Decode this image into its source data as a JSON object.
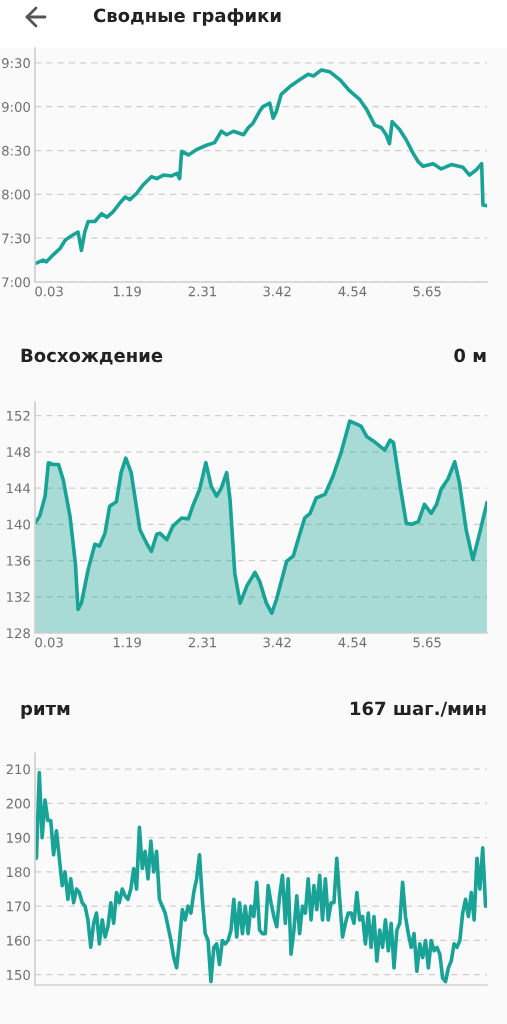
{
  "chart_data": [
    {
      "type": "line",
      "title": "Сводные графики",
      "color": "#18a396",
      "x": [
        -0.18,
        -0.06,
        -0.01,
        0.09,
        0.19,
        0.27,
        0.37,
        0.46,
        0.51,
        0.56,
        0.61,
        0.71,
        0.81,
        0.89,
        0.98,
        1.08,
        1.16,
        1.23,
        1.33,
        1.43,
        1.55,
        1.63,
        1.73,
        1.85,
        1.93,
        1.97,
        2.0,
        2.1,
        2.22,
        2.37,
        2.49,
        2.59,
        2.67,
        2.77,
        2.92,
        2.99,
        3.06,
        3.16,
        3.21,
        3.31,
        3.36,
        3.41,
        3.48,
        3.61,
        3.76,
        3.88,
        3.96,
        4.08,
        4.2,
        4.35,
        4.5,
        4.65,
        4.75,
        4.87,
        4.97,
        5.04,
        5.09,
        5.13,
        5.24,
        5.34,
        5.44,
        5.52,
        5.59,
        5.74,
        5.86,
        6.01,
        6.18,
        6.28,
        6.38,
        6.46,
        6.48,
        6.54
      ],
      "values": [
        7.21,
        7.25,
        7.23,
        7.31,
        7.38,
        7.48,
        7.53,
        7.57,
        7.36,
        7.57,
        7.69,
        7.69,
        7.78,
        7.74,
        7.8,
        7.9,
        7.97,
        7.94,
        8.01,
        8.11,
        8.2,
        8.18,
        8.22,
        8.21,
        8.24,
        8.18,
        8.49,
        8.45,
        8.51,
        8.56,
        8.59,
        8.72,
        8.68,
        8.72,
        8.68,
        8.76,
        8.81,
        8.95,
        9.0,
        9.04,
        8.87,
        8.95,
        9.14,
        9.23,
        9.31,
        9.37,
        9.35,
        9.42,
        9.4,
        9.31,
        9.18,
        9.08,
        8.97,
        8.79,
        8.76,
        8.68,
        8.58,
        8.83,
        8.74,
        8.62,
        8.47,
        8.37,
        8.32,
        8.35,
        8.29,
        8.34,
        8.31,
        8.22,
        8.28,
        8.35,
        7.88,
        7.87
      ],
      "xlim": [
        -0.18,
        6.54
      ],
      "xticks": [
        0.03,
        1.19,
        2.31,
        3.42,
        4.54,
        5.65
      ],
      "ylim": [
        7,
        9.67
      ],
      "yticks": [
        {
          "value": 7,
          "label": "7:00"
        },
        {
          "value": 7.5,
          "label": "7:30"
        },
        {
          "value": 8,
          "label": "8:00"
        },
        {
          "value": 8.5,
          "label": "8:30"
        },
        {
          "value": 9,
          "label": "9:00"
        },
        {
          "value": 9.5,
          "label": "9:30"
        }
      ],
      "grid": "y"
    },
    {
      "type": "area",
      "title": "Восхождение",
      "subtitle": "0 м",
      "color": "#18a396",
      "x": [
        -0.18,
        -0.11,
        -0.03,
        0.02,
        0.09,
        0.17,
        0.24,
        0.34,
        0.42,
        0.46,
        0.51,
        0.61,
        0.71,
        0.78,
        0.86,
        0.93,
        1.03,
        1.1,
        1.17,
        1.25,
        1.38,
        1.48,
        1.55,
        1.63,
        1.68,
        1.78,
        1.87,
        2.0,
        2.1,
        2.17,
        2.27,
        2.36,
        2.44,
        2.52,
        2.59,
        2.67,
        2.72,
        2.79,
        2.87,
        2.97,
        3.09,
        3.16,
        3.26,
        3.34,
        3.41,
        3.56,
        3.66,
        3.76,
        3.83,
        3.91,
        4.0,
        4.13,
        4.25,
        4.37,
        4.5,
        4.62,
        4.67,
        4.75,
        4.85,
        4.95,
        5.02,
        5.1,
        5.15,
        5.24,
        5.34,
        5.42,
        5.52,
        5.61,
        5.71,
        5.79,
        5.86,
        5.96,
        6.06,
        6.13,
        6.23,
        6.33,
        6.43,
        6.54
      ],
      "values": [
        140.1,
        140.9,
        143.1,
        146.8,
        146.6,
        146.6,
        144.9,
        140.9,
        135.7,
        130.6,
        131.3,
        135.0,
        137.8,
        137.6,
        139.0,
        142.0,
        142.5,
        145.7,
        147.3,
        145.7,
        139.4,
        137.9,
        137.0,
        138.9,
        139.0,
        138.3,
        139.8,
        140.7,
        140.6,
        142.1,
        143.9,
        146.8,
        144.2,
        143.1,
        144.0,
        145.7,
        142.7,
        134.6,
        131.3,
        133.2,
        134.7,
        133.7,
        131.3,
        130.2,
        131.7,
        135.9,
        136.5,
        139.0,
        140.7,
        141.2,
        142.9,
        143.3,
        145.3,
        147.9,
        151.4,
        151.0,
        150.8,
        149.7,
        149.2,
        148.6,
        148.2,
        149.3,
        149.0,
        144.6,
        140.1,
        140.0,
        140.3,
        142.2,
        141.2,
        142.2,
        143.9,
        145.0,
        146.9,
        144.6,
        139.4,
        136.1,
        139.0,
        142.4
      ],
      "xlim": [
        -0.18,
        6.54
      ],
      "xticks": [
        0.03,
        1.19,
        2.31,
        3.42,
        4.54,
        5.65
      ],
      "ylim": [
        128,
        153.5
      ],
      "yticks": [
        128,
        132,
        136,
        140,
        144,
        148,
        152
      ],
      "grid": "y"
    },
    {
      "type": "line",
      "title": "ритм",
      "subtitle": "167 шаг./мин",
      "color": "#18a396",
      "values": [
        184,
        209,
        190,
        201,
        195,
        195,
        185,
        192,
        184,
        176,
        180,
        172,
        178,
        171,
        175,
        174,
        171,
        170,
        166,
        158,
        165,
        168,
        159,
        166,
        161,
        164,
        171,
        165,
        174,
        171,
        175,
        173,
        172,
        175,
        181,
        175,
        193,
        181,
        186,
        178,
        189,
        180,
        186,
        172,
        170,
        168,
        164,
        160,
        155,
        152,
        160,
        169,
        166,
        170,
        168,
        174,
        178,
        185,
        172,
        162,
        160,
        148,
        158,
        159,
        153,
        160,
        159,
        160,
        163,
        172,
        161,
        171,
        162,
        170,
        162,
        170,
        167,
        177,
        163,
        162,
        162,
        176,
        171,
        167,
        164,
        173,
        179,
        165,
        178,
        156,
        163,
        173,
        162,
        170,
        168,
        178,
        166,
        176,
        169,
        179,
        166,
        178,
        166,
        171,
        171,
        184,
        172,
        161,
        165,
        168,
        168,
        165,
        174,
        166,
        167,
        159,
        168,
        158,
        167,
        154,
        163,
        158,
        166,
        157,
        165,
        152,
        163,
        165,
        177,
        167,
        162,
        158,
        162,
        151,
        159,
        155,
        160,
        152,
        160,
        157,
        158,
        156,
        149,
        148,
        152,
        154,
        159,
        158,
        160,
        168,
        172,
        167,
        174,
        166,
        184,
        175,
        187,
        170
      ],
      "categories": [
        null,
        null,
        null,
        null,
        null,
        null,
        null,
        null,
        null,
        null,
        null,
        null,
        null,
        null,
        null,
        null,
        null,
        null,
        null,
        null,
        null,
        null,
        null,
        null,
        null,
        null,
        null,
        null,
        null,
        null,
        null,
        null,
        null,
        null,
        null,
        null,
        null,
        null,
        null,
        null,
        null,
        null,
        null,
        null,
        null,
        null,
        null,
        null,
        null,
        null,
        null,
        null,
        null,
        null,
        null,
        null,
        null,
        null,
        null,
        null,
        null,
        null,
        null,
        null,
        null,
        null,
        null,
        null,
        null,
        null,
        null,
        null,
        null,
        null,
        null,
        null,
        null,
        null,
        null,
        null,
        null,
        null,
        null,
        null,
        null,
        null,
        null,
        null,
        null,
        null,
        null,
        null,
        null,
        null,
        null,
        null,
        null,
        null,
        null,
        null,
        null,
        null,
        null,
        null,
        null,
        null,
        null,
        null,
        null,
        null,
        null,
        null,
        null,
        null,
        null,
        null,
        null,
        null,
        null,
        null,
        null,
        null,
        null,
        null,
        null,
        null,
        null,
        null,
        null,
        null,
        null,
        null,
        null,
        null,
        null,
        null,
        null,
        null,
        null,
        null,
        null,
        null,
        null,
        null,
        null,
        null,
        null,
        null,
        null,
        null,
        null,
        null,
        null,
        null,
        null,
        null,
        null,
        null
      ],
      "ylim": [
        147,
        214.7
      ],
      "yticks": [
        150,
        160,
        170,
        180,
        190,
        200,
        210
      ],
      "tick_labels": "y",
      "grid": "y"
    }
  ]
}
